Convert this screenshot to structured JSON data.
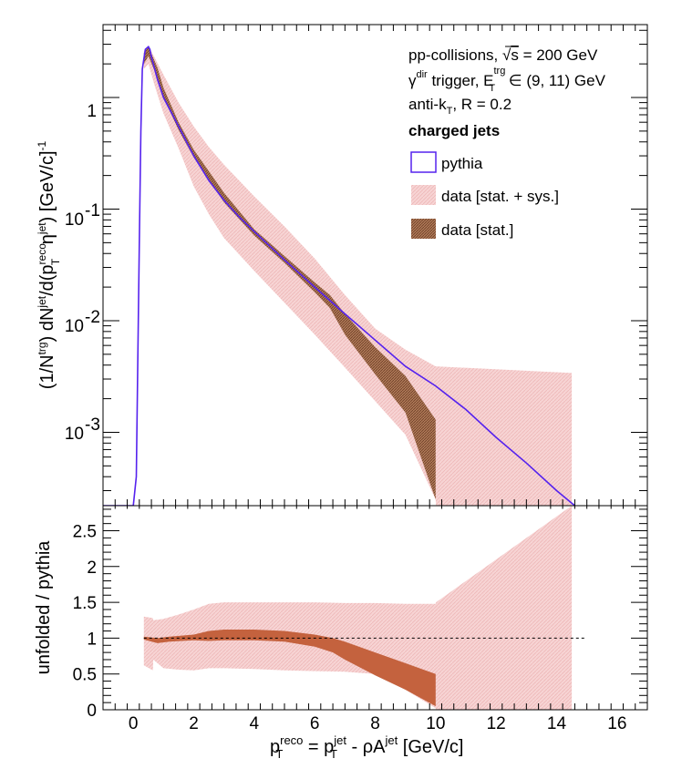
{
  "chart_data": [
    {
      "type": "line",
      "panel": "spectrum",
      "yscale": "log",
      "xlim": [
        -1,
        17
      ],
      "ylim": [
        0.00022,
        4.5
      ],
      "yticks": [
        "1",
        "10",
        "10",
        "10"
      ],
      "yticks_exp": [
        "",
        "-1",
        "-2",
        "-3"
      ],
      "ylabel": {
        "p1": "(1/N",
        "p1_sup": "trg",
        "p2": ") dN",
        "p2_sup": "jet",
        "p3": "/d(p",
        "p3_sup": "reco",
        "p3_sub": "T",
        "p4": " η",
        "p4_sup": "jet",
        "p5": ") [GeV/c]",
        "p5_sup": "-1"
      },
      "legend": {
        "line1": {
          "a": "pp-collisions, ",
          "sqrt": "√",
          "s": "s",
          "b": " = 200 GeV"
        },
        "line2": {
          "gamma": "γ",
          "gamma_sup": "dir",
          "a": " trigger, E",
          "e_sup": "trg",
          "e_sub": "T",
          "b": " ∈ (9, 11) GeV"
        },
        "line3": {
          "a": "anti-k",
          "sub": "T",
          "b": ", R = 0.2"
        },
        "header": "charged jets",
        "entries": [
          "pythia",
          "data [stat. + sys.]",
          "data [stat.]"
        ]
      },
      "colors": {
        "pythia": "#5522ee",
        "sys_band": "#f6d0d0",
        "stat_band": "#9a6644"
      },
      "series": [
        {
          "name": "pythia",
          "x": [
            -1,
            0,
            0.1,
            0.2,
            0.25,
            0.3,
            0.4,
            0.5,
            0.55,
            0.6,
            0.8,
            1,
            1.5,
            2,
            2.5,
            3,
            3.5,
            4,
            5,
            6,
            7,
            8,
            9,
            10,
            11,
            12,
            13,
            14,
            14.6
          ],
          "y": [
            0.00022,
            0.00022,
            0.0004,
            0.05,
            0.5,
            1.8,
            2.7,
            2.85,
            2.7,
            2.3,
            1.45,
            1.0,
            0.55,
            0.3,
            0.18,
            0.12,
            0.085,
            0.063,
            0.035,
            0.02,
            0.0115,
            0.0067,
            0.0039,
            0.0026,
            0.0016,
            0.0009,
            0.00053,
            0.0003,
            0.00022
          ]
        },
        {
          "name": "data [stat. + sys.]",
          "x": [
            0.35,
            0.5,
            0.7,
            1,
            1.5,
            2,
            2.5,
            3,
            4,
            5,
            6,
            7,
            8,
            9,
            10,
            10.01,
            14.5
          ],
          "ylow": [
            1.8,
            2.0,
            1.3,
            0.72,
            0.35,
            0.16,
            0.09,
            0.055,
            0.028,
            0.0145,
            0.0075,
            0.0038,
            0.0019,
            0.00095,
            0.00025,
            0.00022,
            0.00022
          ],
          "yhigh": [
            2.6,
            2.9,
            2.3,
            1.6,
            0.9,
            0.55,
            0.36,
            0.25,
            0.13,
            0.07,
            0.036,
            0.017,
            0.0085,
            0.0055,
            0.0039,
            0.0039,
            0.0034
          ]
        },
        {
          "name": "data [stat.]",
          "x": [
            0.35,
            0.5,
            0.8,
            1,
            1.5,
            2,
            3,
            4,
            5,
            6,
            6.5,
            7,
            8,
            9,
            10
          ],
          "ylow": [
            2.0,
            2.35,
            1.5,
            1.0,
            0.51,
            0.29,
            0.115,
            0.058,
            0.033,
            0.018,
            0.013,
            0.0075,
            0.0033,
            0.0015,
            0.00025
          ],
          "yhigh": [
            2.5,
            2.85,
            1.85,
            1.22,
            0.6,
            0.34,
            0.14,
            0.066,
            0.038,
            0.022,
            0.017,
            0.0115,
            0.0058,
            0.0032,
            0.0013
          ]
        }
      ]
    },
    {
      "type": "line",
      "panel": "ratio",
      "xlim": [
        -1,
        17
      ],
      "ylim": [
        0,
        2.85
      ],
      "xticks": [
        0,
        2,
        4,
        6,
        8,
        10,
        12,
        14,
        16
      ],
      "yticks": [
        "0",
        "0.5",
        "1",
        "1.5",
        "2",
        "2.5"
      ],
      "ylabel": "unfolded / pythia",
      "xlabel": {
        "a": "p",
        "a_sup": "reco",
        "a_sub": "T",
        "b": " = p",
        "b_sup": "jet",
        "b_sub": "T",
        "c": " - ρA",
        "c_sup": "jet",
        "d": " [GeV/c]"
      },
      "reference_line": {
        "y": 1,
        "x": [
          0.35,
          15
        ]
      },
      "series": [
        {
          "name": "data [stat. + sys.]",
          "x": [
            0.35,
            0.65,
            0.66,
            1,
            1.5,
            2,
            2.5,
            3,
            4,
            5,
            6,
            7,
            8,
            9,
            10,
            10.01,
            14.5
          ],
          "ylow": [
            0.62,
            0.55,
            0.7,
            0.58,
            0.56,
            0.55,
            0.58,
            0.58,
            0.57,
            0.55,
            0.54,
            0.53,
            0.5,
            0.28,
            0.02,
            0,
            0
          ],
          "yhigh": [
            1.3,
            1.28,
            1.25,
            1.27,
            1.33,
            1.4,
            1.48,
            1.5,
            1.5,
            1.5,
            1.5,
            1.49,
            1.49,
            1.48,
            1.48,
            1.5,
            2.85
          ]
        },
        {
          "name": "data [stat.]",
          "x": [
            0.35,
            0.8,
            1.2,
            2,
            2.5,
            3,
            4,
            5,
            6,
            6.6,
            7,
            8,
            9,
            10
          ],
          "ylow": [
            0.98,
            0.93,
            0.95,
            0.97,
            0.96,
            0.97,
            0.97,
            0.95,
            0.88,
            0.8,
            0.7,
            0.48,
            0.28,
            0.05
          ],
          "yhigh": [
            1.02,
            1.0,
            1.02,
            1.05,
            1.1,
            1.12,
            1.12,
            1.1,
            1.05,
            1.0,
            0.95,
            0.8,
            0.65,
            0.5
          ]
        }
      ]
    }
  ]
}
